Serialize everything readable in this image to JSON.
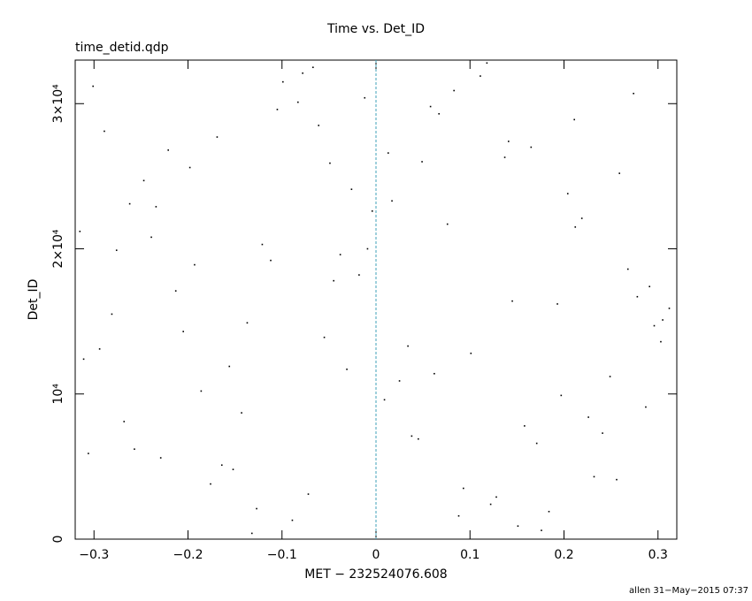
{
  "chart_data": {
    "type": "scatter",
    "title": "Time vs. Det_ID",
    "subtitle": "time_detid.qdp",
    "x_label": "MET − 232524076.608",
    "y_label": "Det_ID",
    "footer": "allen 31−May−2015 07:37",
    "color": "#000000",
    "vline": 0,
    "vline_color": "#3fa0b8",
    "xlim": [
      -0.32,
      0.32
    ],
    "ylim": [
      0,
      33000
    ],
    "xticks": [
      {
        "value": -0.3,
        "label": "−0.3"
      },
      {
        "value": -0.2,
        "label": "−0.2"
      },
      {
        "value": -0.1,
        "label": "−0.1"
      },
      0,
      0.1,
      0.2,
      0.3
    ],
    "yticks": [
      0,
      {
        "value": 10000,
        "label": "10⁴"
      },
      {
        "value": 20000,
        "label": "2×10⁴"
      },
      {
        "value": 30000,
        "label": "3×10⁴"
      }
    ],
    "x": [
      -0.301,
      0.122,
      -0.045,
      0.287,
      -0.198,
      0.034,
      0.211,
      -0.257,
      0.076,
      -0.132,
      0.305,
      -0.012,
      0.158,
      -0.276,
      0.093,
      -0.221,
      0.249,
      -0.067,
      0.017,
      -0.164,
      0.268,
      -0.089,
      0.141,
      -0.311,
      0.058,
      -0.143,
      0.193,
      -0.026,
      0.232,
      -0.239,
      0.111,
      -0.186,
      0.296,
      -0.004,
      0.176,
      -0.289,
      0.045,
      -0.112,
      0.259,
      -0.055,
      0.128,
      -0.213,
      0.083,
      -0.268,
      0.219,
      -0.031,
      0.165,
      -0.152,
      0.312,
      -0.078,
      0.009,
      -0.247,
      0.184,
      -0.121,
      0.067,
      -0.294,
      0.241,
      -0.018,
      0.137,
      -0.176,
      0.278,
      -0.099,
      0.025,
      -0.229,
      0.204,
      -0.061,
      0.101,
      -0.315,
      0.151,
      -0.038,
      0.226,
      -0.205,
      0.049,
      -0.127,
      0.291,
      -0.083,
      0.171,
      -0.262,
      0.062,
      -0.169,
      0.256,
      -0.009,
      0.118,
      -0.281,
      0.197,
      -0.049,
      0.088,
      -0.193,
      0.303,
      -0.105,
      0.038,
      -0.234,
      0.145,
      -0.072,
      0.274,
      -0.156,
      0.013,
      -0.306,
      0.212,
      -0.137
    ],
    "values": [
      31200,
      2400,
      17800,
      9100,
      25600,
      13300,
      28900,
      6200,
      21700,
      400,
      15100,
      30400,
      7800,
      19900,
      3500,
      26800,
      11200,
      32500,
      23300,
      5100,
      18600,
      1300,
      27400,
      12400,
      29800,
      8700,
      16200,
      24100,
      4300,
      20800,
      31900,
      10200,
      14700,
      22600,
      600,
      28100,
      6900,
      19200,
      25200,
      13900,
      2900,
      17100,
      30900,
      8100,
      22100,
      11700,
      27000,
      4800,
      15900,
      32100,
      9600,
      24700,
      1900,
      20300,
      29300,
      13100,
      7300,
      18200,
      26300,
      3800,
      16700,
      31500,
      10900,
      5600,
      23800,
      28500,
      12800,
      21200,
      900,
      19600,
      8400,
      14300,
      26000,
      2100,
      17400,
      30100,
      6600,
      23100,
      11400,
      27700,
      4100,
      20000,
      32800,
      15500,
      9900,
      25900,
      1600,
      18900,
      13600,
      29600,
      7100,
      22900,
      16400,
      3100,
      30700,
      11900,
      26600,
      5900,
      21500,
      14900
    ]
  }
}
